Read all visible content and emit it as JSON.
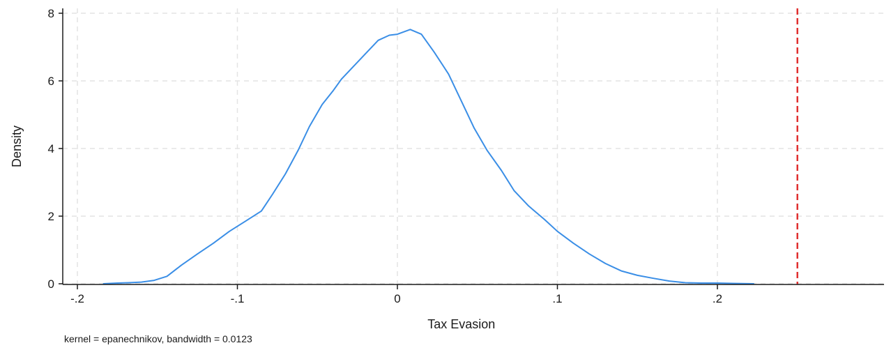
{
  "chart_data": {
    "type": "line",
    "title": "",
    "xlabel": "Tax Evasion",
    "ylabel": "Density",
    "xlim": [
      -0.2,
      0.3
    ],
    "ylim": [
      0,
      8
    ],
    "x_ticks": [
      -0.2,
      -0.1,
      0,
      0.1,
      0.2
    ],
    "x_tick_labels": [
      "-.2",
      "-.1",
      "0",
      ".1",
      ".2"
    ],
    "y_ticks": [
      0,
      2,
      4,
      6,
      8
    ],
    "y_tick_labels": [
      "0",
      "2",
      "4",
      "6",
      "8"
    ],
    "grid": true,
    "note": "kernel = epanechnikov, bandwidth = 0.0123",
    "series": [
      {
        "color": "#3a8ee6",
        "x": [
          -0.184,
          -0.175,
          -0.168,
          -0.16,
          -0.152,
          -0.144,
          -0.135,
          -0.125,
          -0.115,
          -0.105,
          -0.095,
          -0.085,
          -0.078,
          -0.07,
          -0.062,
          -0.055,
          -0.047,
          -0.04,
          -0.035,
          -0.027,
          -0.02,
          -0.012,
          -0.005,
          0.0,
          0.008,
          0.015,
          0.023,
          0.032,
          0.04,
          0.048,
          0.056,
          0.065,
          0.073,
          0.082,
          0.092,
          0.1,
          0.11,
          0.12,
          0.13,
          0.14,
          0.15,
          0.16,
          0.17,
          0.18,
          0.19,
          0.2,
          0.21,
          0.223
        ],
        "y": [
          0.0,
          0.02,
          0.03,
          0.05,
          0.1,
          0.22,
          0.55,
          0.88,
          1.2,
          1.55,
          1.85,
          2.15,
          2.65,
          3.25,
          3.95,
          4.65,
          5.3,
          5.72,
          6.05,
          6.45,
          6.8,
          7.2,
          7.35,
          7.38,
          7.52,
          7.38,
          6.85,
          6.2,
          5.4,
          4.6,
          3.95,
          3.35,
          2.75,
          2.3,
          1.9,
          1.55,
          1.2,
          0.88,
          0.6,
          0.38,
          0.25,
          0.16,
          0.08,
          0.03,
          0.02,
          0.02,
          0.01,
          0.0
        ]
      }
    ],
    "reference_line": {
      "x": 0.25,
      "color": "#e03030",
      "style": "dashed"
    },
    "axis_color": "#1a1a1a",
    "grid_color": "#e4e4e4"
  }
}
